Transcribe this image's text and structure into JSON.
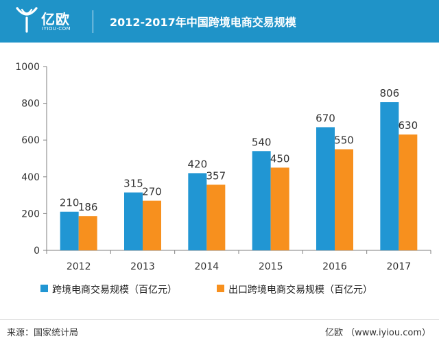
{
  "header": {
    "logo_text": "亿欧",
    "logo_sub": "IYIOU·COM",
    "title": "2012-2017年中国跨境电商交易规模"
  },
  "colors": {
    "header_bg": "#1f93c8",
    "series1": "#2196d3",
    "series2": "#f7901e",
    "axis": "#7f7f7f"
  },
  "chart_data": {
    "type": "bar",
    "categories": [
      "2012",
      "2013",
      "2014",
      "2015",
      "2016",
      "2017"
    ],
    "series": [
      {
        "name": "跨境电商交易规模（百亿元）",
        "values": [
          210,
          315,
          420,
          540,
          670,
          806
        ]
      },
      {
        "name": "出口跨境电商交易规模（百亿元）",
        "values": [
          186,
          270,
          357,
          450,
          550,
          630
        ]
      }
    ],
    "ylim": [
      0,
      1000
    ],
    "yticks": [
      "0",
      "200",
      "400",
      "600",
      "800",
      "1000"
    ],
    "grid": false,
    "legend_position": "bottom",
    "title": "2012-2017年中国跨境电商交易规模"
  },
  "footer": {
    "source": "来源：国家统计局",
    "site": "亿欧 （www.iyiou.com）"
  }
}
